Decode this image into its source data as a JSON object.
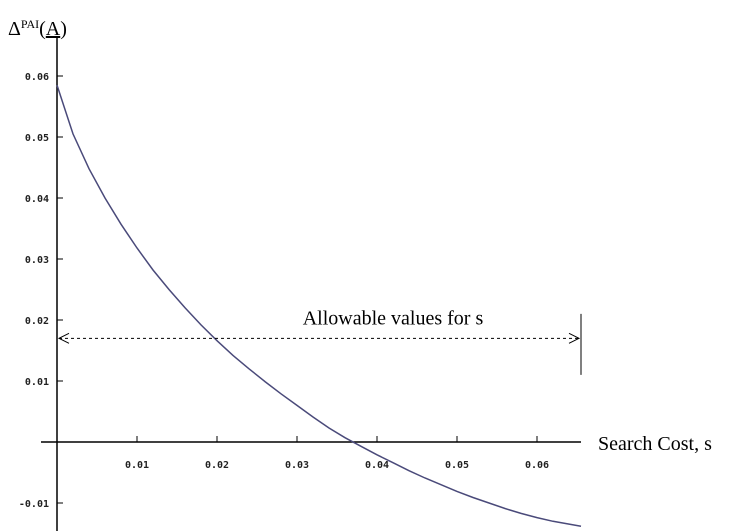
{
  "chart_data": {
    "type": "line",
    "title": "",
    "ylabel": {
      "symbol": "Δ",
      "superscript": "PAI",
      "open": "(",
      "arg": "A",
      "close": ")"
    },
    "xlabel": "Search Cost, s",
    "xlim": [
      0,
      0.064
    ],
    "ylim": [
      -0.013,
      0.066
    ],
    "xticks": [
      {
        "value": 0.01,
        "label": "0.01"
      },
      {
        "value": 0.02,
        "label": "0.02"
      },
      {
        "value": 0.03,
        "label": "0.03"
      },
      {
        "value": 0.04,
        "label": "0.04"
      },
      {
        "value": 0.05,
        "label": "0.05"
      },
      {
        "value": 0.06,
        "label": "0.06"
      }
    ],
    "yticks": [
      {
        "value": 0.06,
        "label": "0.06"
      },
      {
        "value": 0.05,
        "label": "0.05"
      },
      {
        "value": 0.04,
        "label": "0.04"
      },
      {
        "value": 0.03,
        "label": "0.03"
      },
      {
        "value": 0.02,
        "label": "0.02"
      },
      {
        "value": 0.01,
        "label": "0.01"
      },
      {
        "value": -0.01,
        "label": "-0.01"
      }
    ],
    "grid": false,
    "legend": "none",
    "series": [
      {
        "color": "#4a4a7a",
        "x": [
          0,
          0.002,
          0.004,
          0.006,
          0.008,
          0.01,
          0.012,
          0.014,
          0.016,
          0.018,
          0.02,
          0.022,
          0.024,
          0.026,
          0.028,
          0.03,
          0.032,
          0.034,
          0.036,
          0.038,
          0.04,
          0.042,
          0.044,
          0.046,
          0.048,
          0.05,
          0.052,
          0.054,
          0.056,
          0.058,
          0.06,
          0.062,
          0.0655
        ],
        "y": [
          0.0585,
          0.0505,
          0.0448,
          0.04,
          0.0357,
          0.0318,
          0.0282,
          0.025,
          0.022,
          0.0192,
          0.0166,
          0.0142,
          0.012,
          0.0099,
          0.0079,
          0.006,
          0.0041,
          0.0023,
          0.0007,
          -0.0007,
          -0.0021,
          -0.0034,
          -0.0047,
          -0.0059,
          -0.007,
          -0.0081,
          -0.0091,
          -0.01,
          -0.0109,
          -0.0117,
          -0.0124,
          -0.013,
          -0.0138
        ]
      }
    ],
    "annotation": {
      "text": "Allowable values for s",
      "from": 0,
      "to": 0.0655,
      "y": 0.0165
    },
    "end_marker_x": 0.0655
  }
}
